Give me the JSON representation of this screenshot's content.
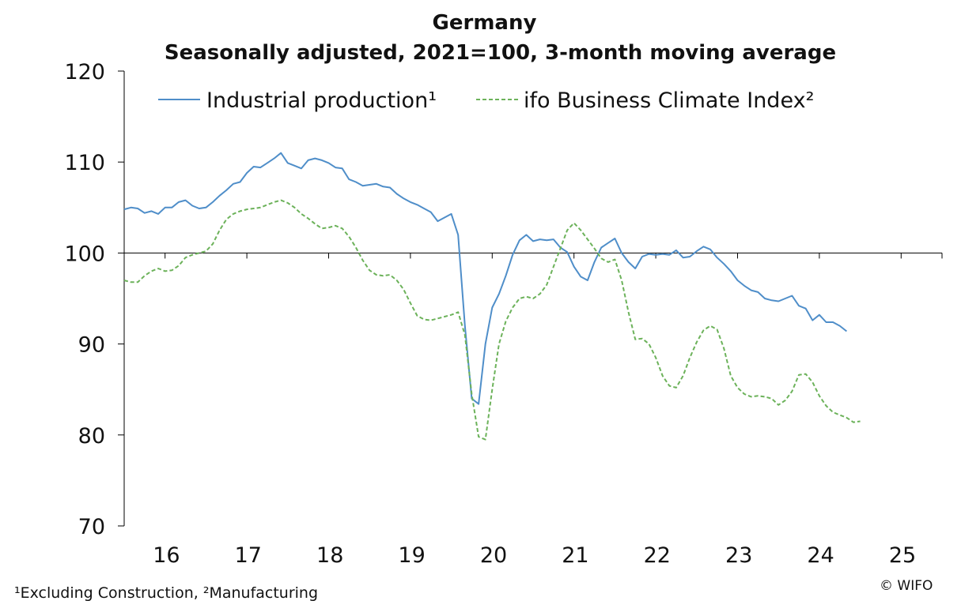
{
  "chart_data": {
    "type": "line",
    "title": "Germany",
    "subtitle": "Seasonally adjusted, 2021=100, 3-month moving average",
    "ylim": [
      70,
      120
    ],
    "yticks": [
      70,
      80,
      90,
      100,
      110,
      120
    ],
    "xlim": [
      2015.5,
      2025.5
    ],
    "xtick_labels": [
      "16",
      "17",
      "18",
      "19",
      "20",
      "21",
      "22",
      "23",
      "24",
      "25"
    ],
    "reference_line": 100,
    "series": [
      {
        "name": "Industrial production¹",
        "color": "#4f8ec9",
        "style": "solid",
        "start": 2015.5,
        "step": 0.0833333,
        "values": [
          104.8,
          105.0,
          104.9,
          104.4,
          104.6,
          104.3,
          105.0,
          105.0,
          105.6,
          105.8,
          105.2,
          104.9,
          105.0,
          105.6,
          106.3,
          106.9,
          107.6,
          107.8,
          108.8,
          109.5,
          109.4,
          109.9,
          110.4,
          111.0,
          109.9,
          109.6,
          109.3,
          110.2,
          110.4,
          110.2,
          109.9,
          109.4,
          109.3,
          108.1,
          107.8,
          107.4,
          107.5,
          107.6,
          107.3,
          107.2,
          106.5,
          106.0,
          105.6,
          105.3,
          104.9,
          104.5,
          103.5,
          103.9,
          104.3,
          102.0,
          92.0,
          84.0,
          83.4,
          90.0,
          94.0,
          95.5,
          97.5,
          99.8,
          101.4,
          102.0,
          101.3,
          101.5,
          101.4,
          101.5,
          100.6,
          100.1,
          98.5,
          97.4,
          97.0,
          99.0,
          100.6,
          101.1,
          101.6,
          100.0,
          99.0,
          98.3,
          99.6,
          99.9,
          99.8,
          99.9,
          99.8,
          100.3,
          99.5,
          99.6,
          100.2,
          100.7,
          100.4,
          99.5,
          98.8,
          98.0,
          97.0,
          96.4,
          95.9,
          95.7,
          95.0,
          94.8,
          94.7,
          95.0,
          95.3,
          94.2,
          93.9,
          92.6,
          93.2,
          92.4,
          92.4,
          92.0,
          91.4
        ]
      },
      {
        "name": "ifo Business Climate Index²",
        "color": "#6cb25a",
        "style": "dashed",
        "start": 2015.5,
        "step": 0.0833333,
        "values": [
          97.0,
          96.8,
          96.8,
          97.5,
          98.0,
          98.3,
          98.0,
          98.1,
          98.6,
          99.5,
          99.8,
          100.0,
          100.2,
          101.0,
          102.5,
          103.7,
          104.3,
          104.6,
          104.8,
          104.9,
          105.0,
          105.3,
          105.6,
          105.8,
          105.5,
          105.0,
          104.3,
          103.8,
          103.2,
          102.7,
          102.8,
          103.0,
          102.7,
          101.8,
          100.6,
          99.2,
          98.1,
          97.6,
          97.5,
          97.6,
          97.0,
          96.0,
          94.5,
          93.1,
          92.7,
          92.6,
          92.8,
          93.0,
          93.2,
          93.5,
          91.0,
          84.5,
          79.8,
          79.5,
          85.0,
          90.0,
          92.5,
          94.0,
          95.0,
          95.2,
          95.0,
          95.5,
          96.5,
          98.5,
          100.5,
          102.5,
          103.3,
          102.5,
          101.5,
          100.5,
          99.4,
          99.0,
          99.3,
          97.0,
          93.5,
          90.5,
          90.6,
          90.0,
          88.5,
          86.5,
          85.4,
          85.2,
          86.5,
          88.5,
          90.2,
          91.5,
          92.0,
          91.6,
          89.5,
          86.5,
          85.2,
          84.5,
          84.2,
          84.3,
          84.2,
          84.0,
          83.3,
          83.8,
          84.8,
          86.6,
          86.7,
          85.8,
          84.3,
          83.2,
          82.5,
          82.2,
          81.9,
          81.4,
          81.5
        ]
      }
    ]
  },
  "footnote": "¹Excluding Construction,  ²Manufacturing",
  "copyright": "© WIFO"
}
